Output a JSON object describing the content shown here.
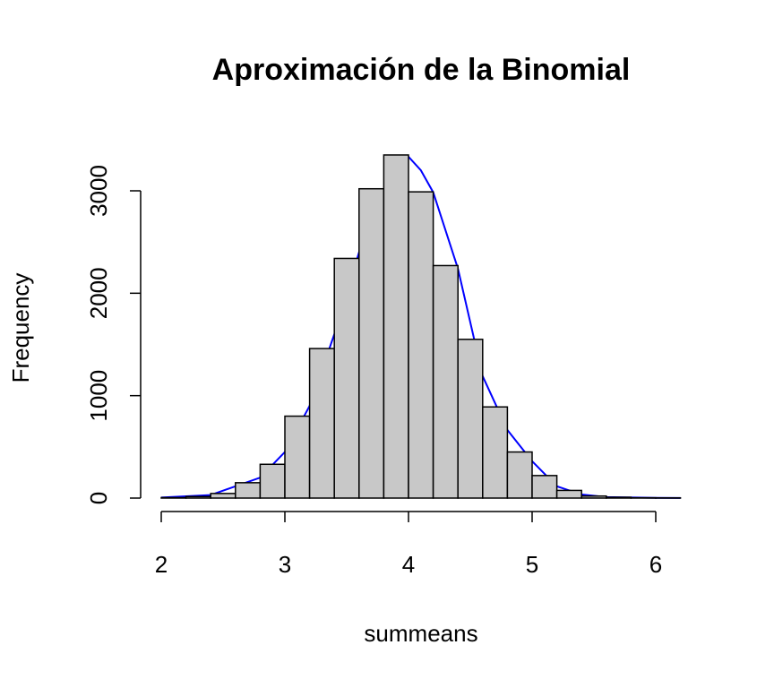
{
  "chart_data": {
    "type": "histogram",
    "title": "Aproximación de la Binomial",
    "x_label": "summeans",
    "y_label": "Frequency",
    "bins": [
      2.0,
      2.2,
      2.4,
      2.6,
      2.8,
      3.0,
      3.2,
      3.4,
      3.6,
      3.8,
      4.0,
      4.2,
      4.4,
      4.6,
      4.8,
      5.0,
      5.2,
      5.4,
      5.6,
      5.8,
      6.0,
      6.2
    ],
    "counts": [
      5,
      15,
      45,
      150,
      330,
      800,
      1460,
      2340,
      3020,
      3350,
      2990,
      2270,
      1550,
      890,
      450,
      220,
      75,
      20,
      8,
      3,
      2
    ],
    "color": "#c8c8c8",
    "curve": {
      "color": "#0000ff",
      "x": [
        2.0,
        2.4,
        2.8,
        3.0,
        3.2,
        3.4,
        3.6,
        3.8,
        4.0,
        4.1,
        4.2,
        4.4,
        4.6,
        4.8,
        5.0,
        5.2,
        5.4,
        5.6,
        6.0,
        6.2
      ],
      "values": [
        5,
        30,
        200,
        450,
        900,
        1600,
        2400,
        3000,
        3333,
        3200,
        2985,
        2240,
        1190,
        665,
        360,
        115,
        35,
        10,
        2,
        1
      ]
    },
    "xlim": [
      2,
      6
    ],
    "xticks": [
      2,
      3,
      4,
      5,
      6
    ],
    "ylim": [
      0,
      3000
    ],
    "yticks": [
      0,
      1000,
      2000,
      3000
    ]
  }
}
